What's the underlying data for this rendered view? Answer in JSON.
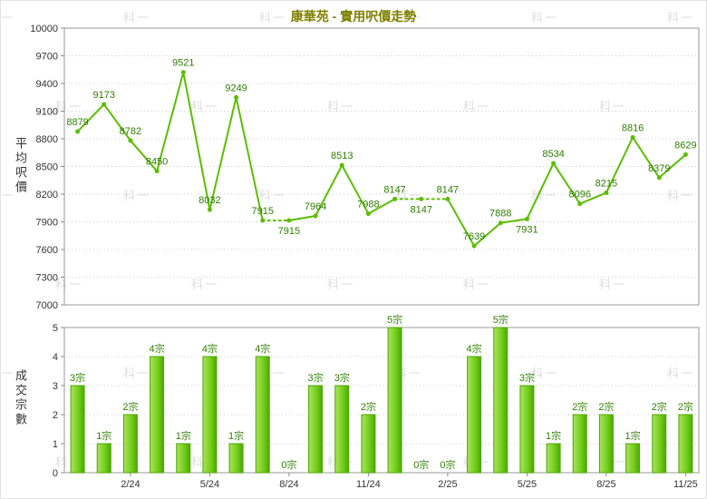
{
  "watermark": {
    "text": "科一",
    "color": "#dedede"
  },
  "chart_data": [
    {
      "type": "line",
      "title": "康華苑 - 實用呎價走勢",
      "title_color": "#808000",
      "ylabel": "平均呎價",
      "ylim": [
        7000,
        10000
      ],
      "yticks": [
        7000,
        7300,
        7600,
        7900,
        8200,
        8500,
        8800,
        9100,
        9400,
        9700,
        10000
      ],
      "values": [
        8879,
        9173,
        8782,
        8450,
        9521,
        8032,
        9249,
        7915,
        7915,
        7964,
        8513,
        7988,
        8147,
        8147,
        8147,
        7639,
        7888,
        7931,
        8534,
        8096,
        8215,
        8816,
        8379,
        8629
      ],
      "line_color": "#5bbd00",
      "point_label_color": "#2e7d00",
      "grid": true,
      "legend": "none",
      "note": "segments into zero-sale months drawn dotted"
    },
    {
      "type": "bar",
      "ylabel": "成交宗數",
      "ylim": [
        0,
        5
      ],
      "yticks": [
        0,
        1,
        2,
        3,
        4,
        5
      ],
      "values": [
        3,
        1,
        2,
        4,
        1,
        4,
        1,
        4,
        0,
        3,
        3,
        2,
        5,
        0,
        0,
        4,
        5,
        3,
        1,
        2,
        2,
        1,
        2,
        2
      ],
      "unit_suffix": "宗",
      "bar_color_light": "#aae25e",
      "bar_color_mid": "#76cf1d",
      "bar_color_dark": "#4ca800",
      "bar_label_color": "#2e7d00",
      "grid": true,
      "legend": "none"
    }
  ],
  "x_axis": {
    "tick_labels": [
      "2/24",
      "5/24",
      "8/24",
      "11/24",
      "2/25",
      "5/25",
      "8/25",
      "11/25"
    ],
    "tick_indices": [
      2,
      5,
      8,
      11,
      14,
      17,
      20,
      23
    ],
    "n_slots": 24
  }
}
